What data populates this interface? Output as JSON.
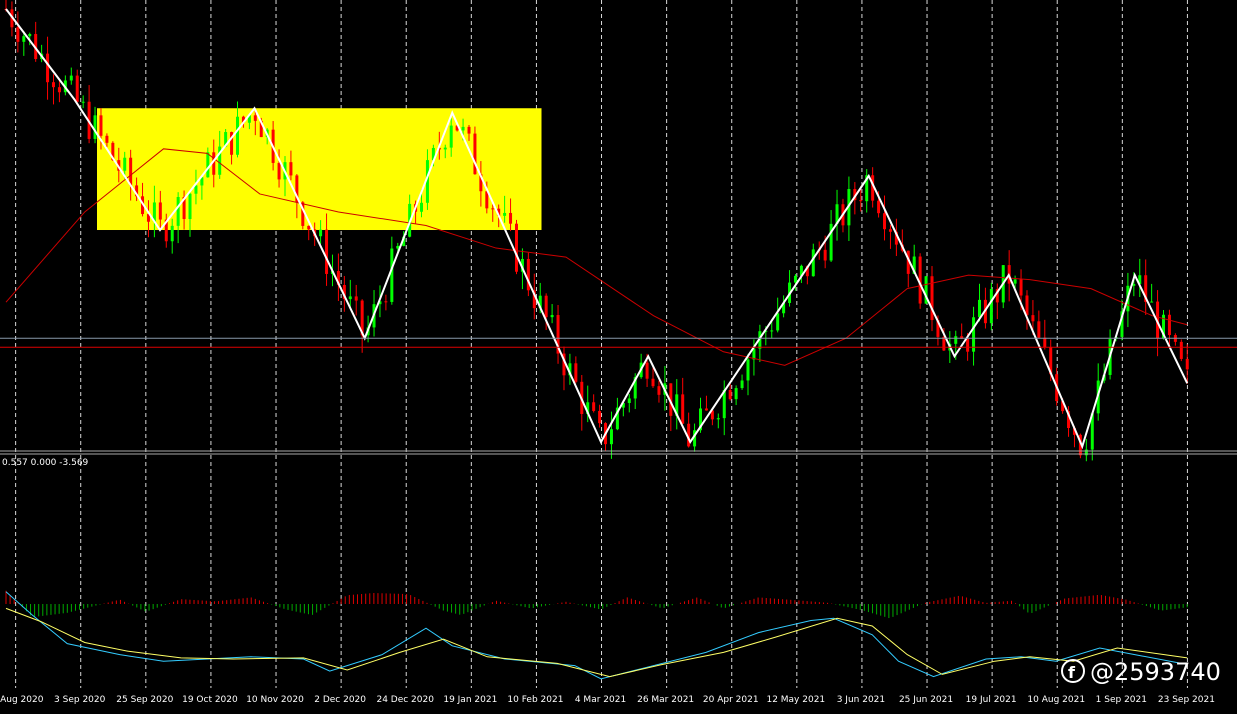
{
  "chart_data": {
    "type": "candlestick",
    "colors": {
      "background": "#000000",
      "bull_candle": "#00ff00",
      "bear_candle": "#ff0000",
      "zigzag": "#ffffff",
      "moving_average": "#cc0000",
      "highlight_box": "#ffff00",
      "level_line_1": "#8899aa",
      "level_line_2": "#dd0000",
      "macd_line": "#33ccff",
      "signal_line": "#ffff66",
      "histogram_positive": "#dd0000",
      "histogram_negative": "#00aa00",
      "grid": "#ffffff"
    },
    "grid": "vertical-dashed",
    "x_tick_labels": [
      "12 Aug 2020",
      "3 Sep 2020",
      "25 Sep 2020",
      "19 Oct 2020",
      "10 Nov 2020",
      "2 Dec 2020",
      "24 Dec 2020",
      "19 Jan 2021",
      "10 Feb 2021",
      "4 Mar 2021",
      "26 Mar 2021",
      "20 Apr 2021",
      "12 May 2021",
      "3 Jun 2021",
      "25 Jun 2021",
      "19 Jul 2021",
      "10 Aug 2021",
      "1 Sep 2021",
      "23 Sep 2021"
    ],
    "zigzag_points": [
      {
        "x": 0,
        "y": 0.98
      },
      {
        "x": 3.9,
        "y": 0.78
      },
      {
        "x": 8.8,
        "y": 0.49
      },
      {
        "x": 14.2,
        "y": 0.76
      },
      {
        "x": 20.5,
        "y": 0.25
      },
      {
        "x": 25.5,
        "y": 0.75
      },
      {
        "x": 34.0,
        "y": 0.02
      },
      {
        "x": 36.7,
        "y": 0.21
      },
      {
        "x": 39.1,
        "y": 0.02
      },
      {
        "x": 49.3,
        "y": 0.61
      },
      {
        "x": 54.2,
        "y": 0.21
      },
      {
        "x": 57.3,
        "y": 0.39
      },
      {
        "x": 61.5,
        "y": 0.01
      },
      {
        "x": 64.5,
        "y": 0.39
      },
      {
        "x": 67.5,
        "y": 0.15
      }
    ],
    "ma_points": [
      {
        "x": 0,
        "y": 0.33
      },
      {
        "x": 4.5,
        "y": 0.53
      },
      {
        "x": 9.0,
        "y": 0.67
      },
      {
        "x": 11.5,
        "y": 0.66
      },
      {
        "x": 14.5,
        "y": 0.57
      },
      {
        "x": 19.0,
        "y": 0.53
      },
      {
        "x": 24.0,
        "y": 0.5
      },
      {
        "x": 28.0,
        "y": 0.45
      },
      {
        "x": 32.0,
        "y": 0.43
      },
      {
        "x": 37.0,
        "y": 0.3
      },
      {
        "x": 41.0,
        "y": 0.22
      },
      {
        "x": 44.5,
        "y": 0.19
      },
      {
        "x": 48.0,
        "y": 0.25
      },
      {
        "x": 51.5,
        "y": 0.36
      },
      {
        "x": 55.0,
        "y": 0.39
      },
      {
        "x": 58.5,
        "y": 0.38
      },
      {
        "x": 62.0,
        "y": 0.36
      },
      {
        "x": 65.5,
        "y": 0.3
      },
      {
        "x": 67.5,
        "y": 0.28
      }
    ],
    "highlight_box": {
      "x_start": 5.2,
      "x_end": 30.6,
      "y_low": 0.49,
      "y_high": 0.76
    },
    "horizontal_levels": [
      0.25,
      0.23
    ],
    "indicator": {
      "header": "0.557 0.000 -3.569",
      "macd": [
        {
          "x": 0,
          "y": 0.557
        },
        {
          "x": 1.5,
          "y": -0.5
        },
        {
          "x": 3.5,
          "y": -1.8
        },
        {
          "x": 6.5,
          "y": -2.3
        },
        {
          "x": 9.0,
          "y": -2.6
        },
        {
          "x": 11.5,
          "y": -2.5
        },
        {
          "x": 14.0,
          "y": -2.4
        },
        {
          "x": 17.0,
          "y": -2.5
        },
        {
          "x": 18.5,
          "y": -3.05
        },
        {
          "x": 21.5,
          "y": -2.3
        },
        {
          "x": 24.0,
          "y": -1.1
        },
        {
          "x": 25.5,
          "y": -1.9
        },
        {
          "x": 28.5,
          "y": -2.5
        },
        {
          "x": 32.5,
          "y": -2.8
        },
        {
          "x": 34.0,
          "y": -3.4
        },
        {
          "x": 36.5,
          "y": -2.9
        },
        {
          "x": 40.0,
          "y": -2.2
        },
        {
          "x": 43.0,
          "y": -1.3
        },
        {
          "x": 46.0,
          "y": -0.75
        },
        {
          "x": 47.3,
          "y": -0.65
        },
        {
          "x": 49.5,
          "y": -1.4
        },
        {
          "x": 51.0,
          "y": -2.6
        },
        {
          "x": 53.0,
          "y": -3.3
        },
        {
          "x": 56.0,
          "y": -2.5
        },
        {
          "x": 58.0,
          "y": -2.4
        },
        {
          "x": 60.0,
          "y": -2.6
        },
        {
          "x": 62.5,
          "y": -2.0
        },
        {
          "x": 64.5,
          "y": -2.3
        },
        {
          "x": 67.5,
          "y": -2.75
        }
      ],
      "signal": [
        {
          "x": 0,
          "y": -0.2
        },
        {
          "x": 2.0,
          "y": -0.8
        },
        {
          "x": 4.5,
          "y": -1.75
        },
        {
          "x": 7.0,
          "y": -2.15
        },
        {
          "x": 10.0,
          "y": -2.45
        },
        {
          "x": 13.0,
          "y": -2.5
        },
        {
          "x": 17.0,
          "y": -2.45
        },
        {
          "x": 19.5,
          "y": -3.0
        },
        {
          "x": 22.5,
          "y": -2.2
        },
        {
          "x": 25.0,
          "y": -1.6
        },
        {
          "x": 27.5,
          "y": -2.4
        },
        {
          "x": 31.5,
          "y": -2.7
        },
        {
          "x": 34.5,
          "y": -3.3
        },
        {
          "x": 37.5,
          "y": -2.75
        },
        {
          "x": 41.0,
          "y": -2.2
        },
        {
          "x": 44.0,
          "y": -1.5
        },
        {
          "x": 47.5,
          "y": -0.65
        },
        {
          "x": 49.5,
          "y": -1.0
        },
        {
          "x": 51.5,
          "y": -2.3
        },
        {
          "x": 53.5,
          "y": -3.2
        },
        {
          "x": 56.5,
          "y": -2.6
        },
        {
          "x": 58.5,
          "y": -2.4
        },
        {
          "x": 61.0,
          "y": -2.6
        },
        {
          "x": 63.5,
          "y": -2.0
        },
        {
          "x": 67.5,
          "y": -2.45
        }
      ],
      "histogram_envelope": [
        {
          "x": 0,
          "y": 0.6
        },
        {
          "x": 1.5,
          "y": -0.6
        },
        {
          "x": 3.5,
          "y": -0.4
        },
        {
          "x": 6.5,
          "y": 0.2
        },
        {
          "x": 8.0,
          "y": -0.35
        },
        {
          "x": 10.0,
          "y": 0.22
        },
        {
          "x": 12.0,
          "y": 0.12
        },
        {
          "x": 14.0,
          "y": 0.3
        },
        {
          "x": 16.0,
          "y": -0.25
        },
        {
          "x": 17.5,
          "y": -0.5
        },
        {
          "x": 19.5,
          "y": 0.4
        },
        {
          "x": 21.0,
          "y": 0.5
        },
        {
          "x": 23.0,
          "y": 0.45
        },
        {
          "x": 25.0,
          "y": -0.3
        },
        {
          "x": 26.0,
          "y": -0.5
        },
        {
          "x": 28.0,
          "y": 0.15
        },
        {
          "x": 30.0,
          "y": -0.2
        },
        {
          "x": 32.0,
          "y": 0.1
        },
        {
          "x": 34.0,
          "y": -0.25
        },
        {
          "x": 35.5,
          "y": 0.3
        },
        {
          "x": 37.5,
          "y": -0.2
        },
        {
          "x": 39.5,
          "y": 0.3
        },
        {
          "x": 41.0,
          "y": -0.2
        },
        {
          "x": 43.0,
          "y": 0.3
        },
        {
          "x": 45.5,
          "y": 0.15
        },
        {
          "x": 47.0,
          "y": 0.05
        },
        {
          "x": 49.0,
          "y": -0.3
        },
        {
          "x": 50.5,
          "y": -0.65
        },
        {
          "x": 52.5,
          "y": 0.05
        },
        {
          "x": 54.5,
          "y": 0.38
        },
        {
          "x": 56.0,
          "y": 0.05
        },
        {
          "x": 57.5,
          "y": 0.15
        },
        {
          "x": 58.5,
          "y": -0.45
        },
        {
          "x": 60.5,
          "y": 0.25
        },
        {
          "x": 62.5,
          "y": 0.42
        },
        {
          "x": 64.0,
          "y": 0.2
        },
        {
          "x": 66.0,
          "y": -0.3
        },
        {
          "x": 67.5,
          "y": -0.15
        }
      ]
    }
  },
  "watermark": {
    "text": "@2593740",
    "icon": "brand-f-logo"
  }
}
